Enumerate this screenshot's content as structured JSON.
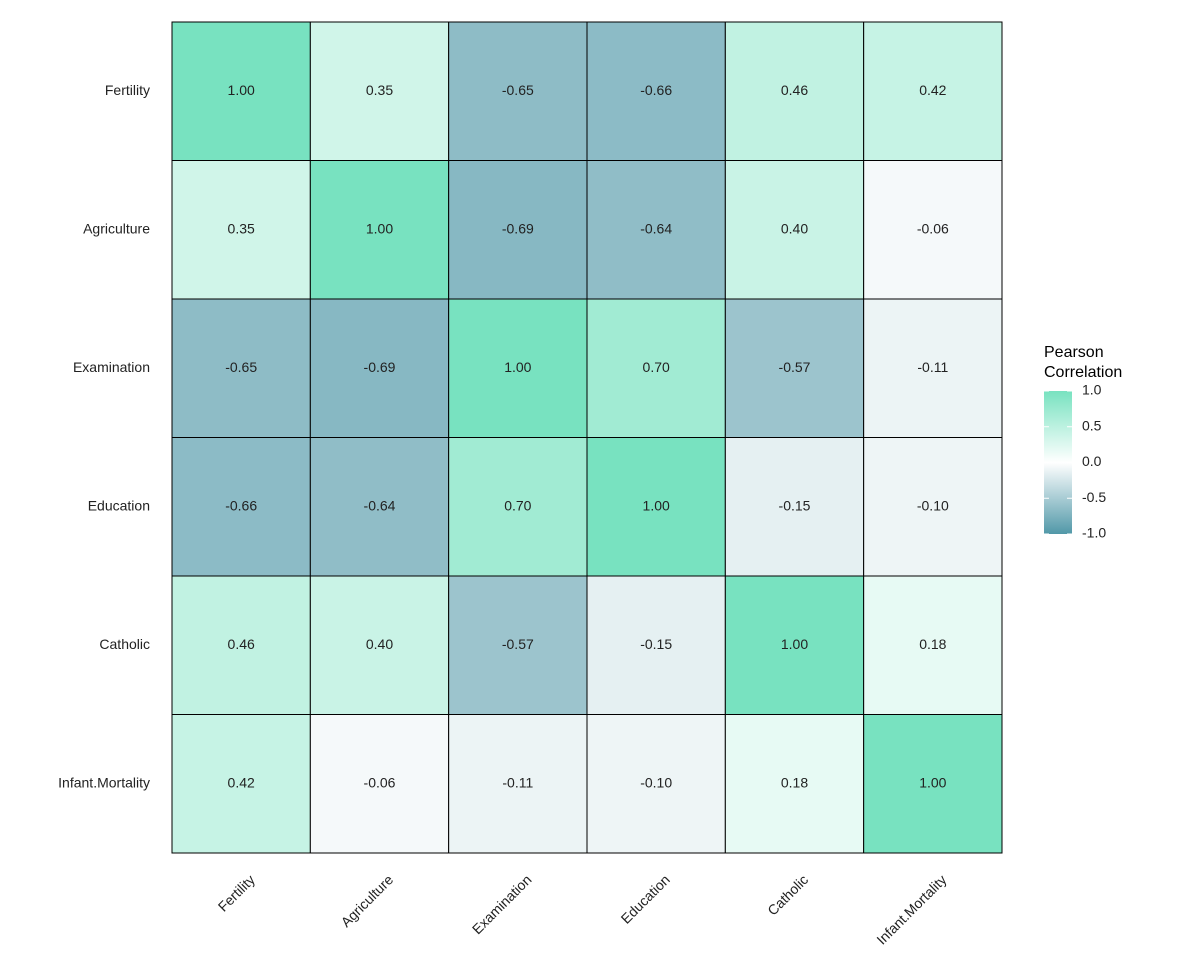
{
  "chart_data": {
    "type": "heatmap",
    "categories": [
      "Fertility",
      "Agriculture",
      "Examination",
      "Education",
      "Catholic",
      "Infant.Mortality"
    ],
    "values": [
      [
        1,
        0.35,
        -0.65,
        -0.66,
        0.46,
        0.42
      ],
      [
        0.35,
        1,
        -0.69,
        -0.64,
        0.4,
        -0.06
      ],
      [
        -0.65,
        -0.69,
        1,
        0.7,
        -0.57,
        -0.11
      ],
      [
        -0.66,
        -0.64,
        0.7,
        1,
        -0.15,
        -0.1
      ],
      [
        0.46,
        0.4,
        -0.57,
        -0.15,
        1,
        0.18
      ],
      [
        0.42,
        -0.06,
        -0.11,
        -0.1,
        0.18,
        1
      ]
    ],
    "value_labels": [
      [
        "1.00",
        "0.35",
        "-0.65",
        "-0.66",
        "0.46",
        "0.42"
      ],
      [
        "0.35",
        "1.00",
        "-0.69",
        "-0.64",
        "0.40",
        "-0.06"
      ],
      [
        "-0.65",
        "-0.69",
        "1.00",
        "0.70",
        "-0.57",
        "-0.11"
      ],
      [
        "-0.66",
        "-0.64",
        "0.70",
        "1.00",
        "-0.15",
        "-0.10"
      ],
      [
        "0.46",
        "0.40",
        "-0.57",
        "-0.15",
        "1.00",
        "0.18"
      ],
      [
        "0.42",
        "-0.06",
        "-0.11",
        "-0.10",
        "0.18",
        "1.00"
      ]
    ],
    "legend_title": [
      "Pearson",
      "Correlation"
    ],
    "colorlim": [
      -1,
      1
    ],
    "colors": {
      "low": "#5198a8",
      "mid": "#ffffff",
      "high": "#78e2c0"
    },
    "colorticks": [
      {
        "value": 1,
        "label": "1.0"
      },
      0.5,
      {
        "value": 0,
        "label": "0.0"
      },
      -0.5,
      {
        "value": -1,
        "label": "-1.0"
      }
    ]
  }
}
